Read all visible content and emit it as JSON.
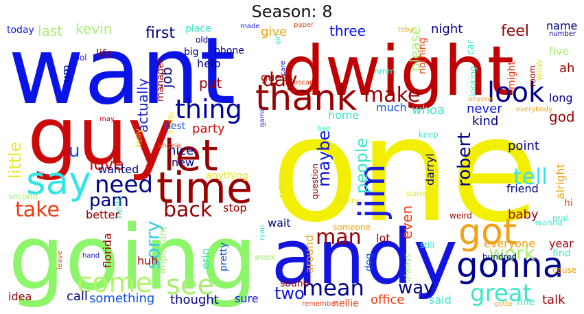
{
  "title": "Season: 8",
  "words": [
    {
      "text": "one",
      "color": "#f2f000"
    },
    {
      "text": "want",
      "color": "#0a14e6"
    },
    {
      "text": "dwight",
      "color": "#c00000"
    },
    {
      "text": "going",
      "color": "#8cf56a"
    },
    {
      "text": "guy",
      "color": "#cc0a0a"
    },
    {
      "text": "andy",
      "color": "#1414e0"
    },
    {
      "text": "time",
      "color": "#990000"
    },
    {
      "text": "let",
      "color": "#990000"
    },
    {
      "text": "say",
      "color": "#33e6e6"
    },
    {
      "text": "thank",
      "color": "#990000"
    },
    {
      "text": "got",
      "color": "#f5a010"
    },
    {
      "text": "gonna",
      "color": "#00008b"
    },
    {
      "text": "jim",
      "color": "#1a1ad9"
    },
    {
      "text": "come",
      "color": "#b0f56a"
    },
    {
      "text": "see",
      "color": "#a6f070"
    },
    {
      "text": "thing",
      "color": "#0000a0"
    },
    {
      "text": "look",
      "color": "#00008b"
    },
    {
      "text": "make",
      "color": "#990000"
    },
    {
      "text": "mean",
      "color": "#00008b"
    },
    {
      "text": "great",
      "color": "#3ae6c8"
    },
    {
      "text": "need",
      "color": "#00008b"
    },
    {
      "text": "back",
      "color": "#990000"
    },
    {
      "text": "man",
      "color": "#990000"
    },
    {
      "text": "take",
      "color": "#f03a10"
    },
    {
      "text": "sorry",
      "color": "#3acce6"
    },
    {
      "text": "tell",
      "color": "#33e6e6"
    },
    {
      "text": "work",
      "color": "#a6f070"
    },
    {
      "text": "day",
      "color": "#990000"
    },
    {
      "text": "pam",
      "color": "#00008b"
    },
    {
      "text": "maybe",
      "color": "#0a14e6"
    },
    {
      "text": "people",
      "color": "#3ae6c8"
    },
    {
      "text": "robert",
      "color": "#00008b"
    },
    {
      "text": "love",
      "color": "#cc0a0a"
    },
    {
      "text": "way",
      "color": "#00008b"
    },
    {
      "text": "two",
      "color": "#0a14e6"
    },
    {
      "text": "little",
      "color": "#e6e633"
    },
    {
      "text": "u",
      "color": "#0a50e6"
    },
    {
      "text": "actually",
      "color": "#1a1ad9"
    },
    {
      "text": "first",
      "color": "#00008b"
    },
    {
      "text": "even",
      "color": "#f03a10"
    },
    {
      "text": "kevin",
      "color": "#a6f070"
    },
    {
      "text": "last",
      "color": "#a6f070"
    },
    {
      "text": "three",
      "color": "#0a14e6"
    },
    {
      "text": "night",
      "color": "#00008b"
    },
    {
      "text": "feel",
      "color": "#990000"
    },
    {
      "text": "name",
      "color": "#00008b"
    },
    {
      "text": "please",
      "color": "#a6f070"
    },
    {
      "text": "give",
      "color": "#f5a010"
    },
    {
      "text": "today",
      "color": "#0a14e6"
    },
    {
      "text": "place",
      "color": "#3ae6c8"
    },
    {
      "text": "made",
      "color": "#1a1ad9"
    },
    {
      "text": "paper",
      "color": "#f03a10"
    },
    {
      "text": "toby",
      "color": "#f5a010"
    },
    {
      "text": "number",
      "color": "#00008b"
    },
    {
      "text": "girl",
      "color": "#3ae6c8"
    },
    {
      "text": "old",
      "color": "#00008b"
    },
    {
      "text": "big",
      "color": "#00008b"
    },
    {
      "text": "phone",
      "color": "#00008b"
    },
    {
      "text": "nothing",
      "color": "#f03a10"
    },
    {
      "text": "car",
      "color": "#3ae6c8"
    },
    {
      "text": "five",
      "color": "#a6f070"
    },
    {
      "text": "wow",
      "color": "#e6e633"
    },
    {
      "text": "might",
      "color": "#f03a10"
    },
    {
      "text": "room",
      "color": "#990000"
    },
    {
      "text": "ah",
      "color": "#990000"
    },
    {
      "text": "cool",
      "color": "#1a1ad9"
    },
    {
      "text": "life",
      "color": "#990000"
    },
    {
      "text": "job",
      "color": "#00008b"
    },
    {
      "text": "help",
      "color": "#00008b"
    },
    {
      "text": "manager",
      "color": "#990000"
    },
    {
      "text": "um",
      "color": "#00008b"
    },
    {
      "text": "guess",
      "color": "#990000"
    },
    {
      "text": "put",
      "color": "#990000"
    },
    {
      "text": "hmm",
      "color": "#3ae6c8"
    },
    {
      "text": "looking",
      "color": "#3ae6c8"
    },
    {
      "text": "care",
      "color": "#1a1ad9"
    },
    {
      "text": "oscar",
      "color": "#f03a10"
    },
    {
      "text": "anyone",
      "color": "#f5a010"
    },
    {
      "text": "long",
      "color": "#00008b"
    },
    {
      "text": "much",
      "color": "#0a50e6"
    },
    {
      "text": "whoa",
      "color": "#3ae6c8"
    },
    {
      "text": "never",
      "color": "#0a14e6"
    },
    {
      "text": "god",
      "color": "#990000"
    },
    {
      "text": "kind",
      "color": "#00008b"
    },
    {
      "text": "home",
      "color": "#3ae6c8"
    },
    {
      "text": "party",
      "color": "#cc0a0a"
    },
    {
      "text": "phyllis",
      "color": "#e6e633"
    },
    {
      "text": "game",
      "color": "#1a1ad9"
    },
    {
      "text": "bad",
      "color": "#3ae6c8"
    },
    {
      "text": "everybody",
      "color": "#f5a010"
    },
    {
      "text": "may",
      "color": "#cc0a0a"
    },
    {
      "text": "best",
      "color": "#0a50e6"
    },
    {
      "text": "kelly",
      "color": "#e6e633"
    },
    {
      "text": "keep",
      "color": "#3ae6c8"
    },
    {
      "text": "point",
      "color": "#00008b"
    },
    {
      "text": "nice",
      "color": "#00008b"
    },
    {
      "text": "angela",
      "color": "#f03a10"
    },
    {
      "text": "new",
      "color": "#00008b"
    },
    {
      "text": "wanted",
      "color": "#00008b"
    },
    {
      "text": "anything",
      "color": "#e6e633"
    },
    {
      "text": "talking",
      "color": "#e6e633"
    },
    {
      "text": "question",
      "color": "#990000"
    },
    {
      "text": "darryl",
      "color": "#00008b"
    },
    {
      "text": "friend",
      "color": "#00008b"
    },
    {
      "text": "alright",
      "color": "#f5a010"
    },
    {
      "text": "second",
      "color": "#a6f070"
    },
    {
      "text": "hello",
      "color": "#3ae6c8"
    },
    {
      "text": "stop",
      "color": "#990000"
    },
    {
      "text": "stanley",
      "color": "#e6e633"
    },
    {
      "text": "hi",
      "color": "#f03a10"
    },
    {
      "text": "better",
      "color": "#990000"
    },
    {
      "text": "every",
      "color": "#e6e633"
    },
    {
      "text": "weird",
      "color": "#990000"
    },
    {
      "text": "baby",
      "color": "#990000"
    },
    {
      "text": "wanna",
      "color": "#3ae6c8"
    },
    {
      "text": "real",
      "color": "#3ae6c8"
    },
    {
      "text": "wait",
      "color": "#00008b"
    },
    {
      "text": "someone",
      "color": "#f5a010"
    },
    {
      "text": "lot",
      "color": "#990000"
    },
    {
      "text": "still",
      "color": "#3ae6c8"
    },
    {
      "text": "everyone",
      "color": "#f5a010"
    },
    {
      "text": "year",
      "color": "#990000"
    },
    {
      "text": "find",
      "color": "#3ae6c8"
    },
    {
      "text": "florida",
      "color": "#990000"
    },
    {
      "text": "huh",
      "color": "#990000"
    },
    {
      "text": "important",
      "color": "#a6f070"
    },
    {
      "text": "erin",
      "color": "#3ae6c8"
    },
    {
      "text": "pretty",
      "color": "#0a50e6"
    },
    {
      "text": "ryan",
      "color": "#3ae6c8"
    },
    {
      "text": "around",
      "color": "#f5a010"
    },
    {
      "text": "hand",
      "color": "#1a1ad9"
    },
    {
      "text": "week",
      "color": "#a6f070"
    },
    {
      "text": "dog",
      "color": "#0a50e6"
    },
    {
      "text": "always",
      "color": "#a6f070"
    },
    {
      "text": "hundred",
      "color": "#00008b"
    },
    {
      "text": "cause",
      "color": "#f5a010"
    },
    {
      "text": "leave",
      "color": "#f03a10"
    },
    {
      "text": "sound",
      "color": "#990000"
    },
    {
      "text": "idea",
      "color": "#990000"
    },
    {
      "text": "call",
      "color": "#00008b"
    },
    {
      "text": "something",
      "color": "#0a50e6"
    },
    {
      "text": "thought",
      "color": "#00008b"
    },
    {
      "text": "sure",
      "color": "#0a14e6"
    },
    {
      "text": "office",
      "color": "#f03a10"
    },
    {
      "text": "said",
      "color": "#3ae6c8"
    },
    {
      "text": "talk",
      "color": "#990000"
    },
    {
      "text": "nellie",
      "color": "#f03a10"
    },
    {
      "text": "remember",
      "color": "#f03a10"
    },
    {
      "text": "gotta",
      "color": "#f5a010"
    },
    {
      "text": "fine",
      "color": "#3ae6c8"
    }
  ]
}
